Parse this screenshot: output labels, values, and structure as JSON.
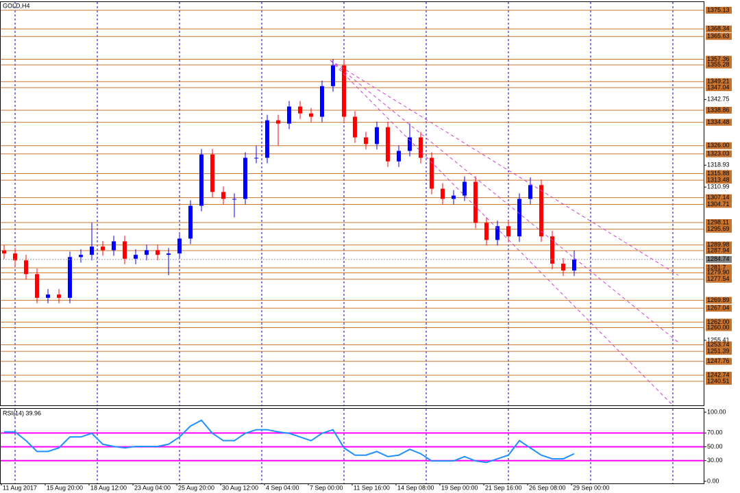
{
  "chart_data": [
    {
      "type": "candlestick",
      "title": "GOLD,H4",
      "open": [
        1288.0,
        1286.9,
        1284.4,
        1279.4,
        1270.8,
        1272.0,
        1270.8,
        1285.6,
        1286.4,
        1289.4,
        1288.1,
        1291.3,
        1285.0,
        1286.4,
        1288.1,
        1286.4,
        1286.9,
        1292.3,
        1304.2,
        1322.8,
        1309.2,
        1306.7,
        1306.7,
        1321.6,
        1321.6,
        1335.2,
        1334.0,
        1340.2,
        1337.7,
        1336.5,
        1347.6,
        1355.1,
        1336.5,
        1329.0,
        1326.6,
        1332.7,
        1320.3,
        1324.1,
        1329.0,
        1321.6,
        1310.4,
        1306.7,
        1307.9,
        1312.9,
        1298.0,
        1291.8,
        1296.8,
        1293.1,
        1306.7,
        1311.7,
        1293.1,
        1283.2,
        1280.7
      ],
      "high": [
        1290.0,
        1288.9,
        1286.4,
        1281.4,
        1274.0,
        1274.0,
        1287.6,
        1288.4,
        1298.0,
        1291.4,
        1293.3,
        1293.3,
        1288.4,
        1290.1,
        1290.1,
        1288.9,
        1294.3,
        1306.2,
        1324.8,
        1324.8,
        1311.2,
        1308.7,
        1323.6,
        1326.0,
        1337.2,
        1337.2,
        1342.2,
        1342.2,
        1339.7,
        1349.6,
        1357.4,
        1357.1,
        1338.5,
        1331.0,
        1334.7,
        1334.7,
        1326.1,
        1334.0,
        1331.0,
        1323.6,
        1312.4,
        1309.9,
        1314.9,
        1314.9,
        1300.0,
        1298.8,
        1298.8,
        1308.7,
        1314.5,
        1313.7,
        1295.1,
        1285.2,
        1288.0
      ],
      "low": [
        1284.9,
        1282.4,
        1277.4,
        1268.8,
        1268.8,
        1268.8,
        1268.8,
        1283.6,
        1284.4,
        1286.1,
        1286.1,
        1283.0,
        1283.0,
        1284.4,
        1284.4,
        1279.0,
        1284.9,
        1290.3,
        1302.2,
        1307.2,
        1304.7,
        1300.0,
        1304.7,
        1319.6,
        1319.6,
        1326.0,
        1332.0,
        1335.7,
        1334.5,
        1334.5,
        1345.6,
        1334.5,
        1327.0,
        1324.6,
        1324.6,
        1318.3,
        1318.3,
        1322.1,
        1319.6,
        1308.4,
        1304.7,
        1304.7,
        1305.9,
        1296.0,
        1289.8,
        1289.8,
        1291.1,
        1291.1,
        1304.7,
        1291.1,
        1281.2,
        1278.7,
        1278.7
      ],
      "close": [
        1286.9,
        1284.4,
        1279.4,
        1270.8,
        1272.0,
        1270.8,
        1285.6,
        1286.4,
        1289.4,
        1288.1,
        1291.3,
        1285.0,
        1286.4,
        1288.1,
        1286.4,
        1286.9,
        1292.3,
        1304.2,
        1322.8,
        1309.2,
        1306.7,
        1306.7,
        1321.6,
        1321.6,
        1335.2,
        1334.0,
        1340.2,
        1337.7,
        1336.5,
        1347.6,
        1355.1,
        1336.5,
        1329.0,
        1326.6,
        1332.7,
        1320.3,
        1324.1,
        1329.0,
        1321.6,
        1310.4,
        1306.7,
        1307.9,
        1312.9,
        1298.0,
        1291.8,
        1296.8,
        1293.1,
        1306.7,
        1311.7,
        1293.1,
        1283.2,
        1280.7,
        1284.74
      ],
      "up_color": "#0000ff",
      "down_color": "#ff0000",
      "xlim": [
        -0.375,
        63.875
      ],
      "ylim": [
        1231.8,
        1378.1
      ],
      "yticks": [
        1342.75,
        1318.93,
        1310.99,
        1255.41
      ],
      "levels": [
        1375.13,
        1368.34,
        1365.63,
        1357.36,
        1355.28,
        1349.21,
        1347.04,
        1338.86,
        1334.48,
        {
          "value": 1326.0,
          "label": "1326.00"
        },
        1323.03,
        1315.88,
        1313.48,
        1307.14,
        1304.71,
        1298.11,
        1295.69,
        1289.98,
        1287.94,
        1281.7,
        {
          "value": 1279.9,
          "label": "1279.90"
        },
        1277.54,
        1269.89,
        1267.04,
        {
          "value": 1262.0,
          "label": "1262.00"
        },
        {
          "value": 1260.0,
          "label": "1260.00"
        },
        1253.74,
        1251.39,
        1247.76,
        1242.74,
        1240.51
      ],
      "level_color": "#c8732e",
      "current_price": 1284.74
    },
    {
      "type": "line",
      "title": "RSI(14) 39.96",
      "values": [
        71.6,
        71.6,
        58.9,
        43.2,
        43.2,
        48.4,
        64.2,
        64.2,
        69.5,
        53.7,
        50.5,
        48.4,
        50.5,
        50.5,
        50.5,
        53.7,
        64.2,
        80.0,
        88.4,
        69.5,
        58.9,
        58.9,
        69.5,
        74.7,
        74.7,
        71.6,
        69.5,
        64.2,
        58.9,
        69.5,
        74.7,
        48.4,
        37.9,
        37.9,
        43.2,
        35.8,
        37.9,
        46.3,
        40.0,
        29.5,
        29.5,
        29.5,
        35.8,
        29.5,
        27.4,
        32.6,
        37.9,
        58.9,
        48.4,
        37.9,
        32.6,
        32.6,
        39.96
      ],
      "color": "#1e90ff",
      "xlim": [
        -0.375,
        63.875
      ],
      "ylim": [
        -3,
        105
      ],
      "yticks": [
        {
          "value": 100,
          "label": "100.00"
        },
        {
          "value": 70,
          "label": "70.00"
        },
        {
          "value": 50,
          "label": "50.00"
        },
        {
          "value": 30,
          "label": "30.00"
        },
        {
          "value": 0,
          "label": "0.00"
        }
      ],
      "levels": [
        70,
        50,
        30
      ],
      "level_color": "#ff00ff",
      "xticks": [
        {
          "value": -0.25,
          "label": "11 Aug 2017"
        },
        {
          "value": 3.75,
          "label": "15 Aug 20:00"
        },
        {
          "value": 7.75,
          "label": "18 Aug 12:00"
        },
        {
          "value": 11.75,
          "label": "23 Aug 04:00"
        },
        {
          "value": 15.75,
          "label": "25 Aug 20:00"
        },
        {
          "value": 19.75,
          "label": "30 Aug 12:00"
        },
        {
          "value": 23.75,
          "label": "4 Sep 04:00"
        },
        {
          "value": 27.75,
          "label": "7 Sep 00:00"
        },
        {
          "value": 31.75,
          "label": "11 Sep 16:00"
        },
        {
          "value": 35.75,
          "label": "14 Sep 08:00"
        },
        {
          "value": 39.75,
          "label": "19 Sep 00:00"
        },
        {
          "value": 43.75,
          "label": "21 Sep 16:00"
        },
        {
          "value": 47.75,
          "label": "26 Sep 08:00"
        },
        {
          "value": 51.75,
          "label": "29 Sep 00:00"
        }
      ]
    }
  ]
}
